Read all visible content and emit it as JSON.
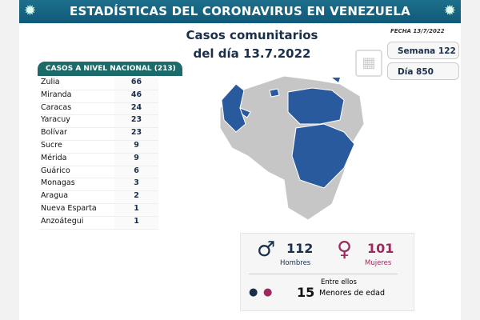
{
  "header": {
    "title": "ESTADÍSTICAS DEL CORONAVIRUS EN VENEZUELA",
    "fecha": "FECHA 13/7/2022"
  },
  "subtitle": {
    "line1": "Casos comunitarios",
    "line2": "del día 13.7.2022"
  },
  "info": {
    "semana": "Semana 122",
    "dia": "Día 850"
  },
  "table": {
    "header": "CASOS A NIVEL NACIONAL  (213)",
    "rows": [
      {
        "state": "Zulia",
        "cases": "66"
      },
      {
        "state": "Miranda",
        "cases": "46"
      },
      {
        "state": "Caracas",
        "cases": "24"
      },
      {
        "state": "Yaracuy",
        "cases": "23"
      },
      {
        "state": "Bolívar",
        "cases": "23"
      },
      {
        "state": "Sucre",
        "cases": "9"
      },
      {
        "state": "Mérida",
        "cases": "9"
      },
      {
        "state": "Guárico",
        "cases": "6"
      },
      {
        "state": "Monagas",
        "cases": "3"
      },
      {
        "state": "Aragua",
        "cases": "2"
      },
      {
        "state": "Nueva Esparta",
        "cases": "1"
      },
      {
        "state": "Anzoátegui",
        "cases": "1"
      }
    ]
  },
  "stats": {
    "men": "112",
    "men_label": "Hombres",
    "women": "101",
    "women_label": "Mujeres",
    "minors_intro": "Entre ellos",
    "minors": "15",
    "minors_label": "Menores de edad"
  },
  "colors": {
    "banner": "#16658a",
    "highlight": "#2a5a9e",
    "men": "#1a2f4a",
    "women": "#a0285f"
  }
}
